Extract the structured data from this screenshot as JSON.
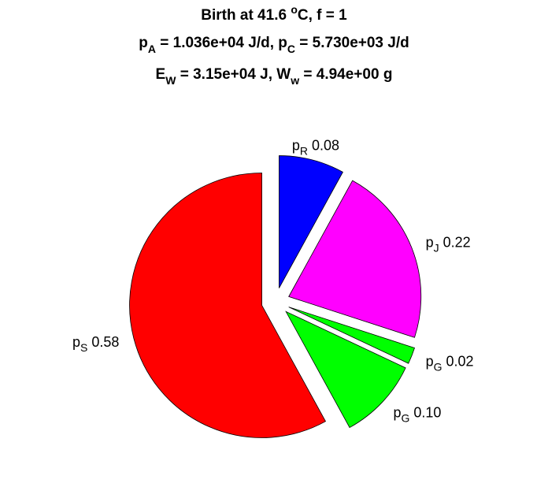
{
  "chart_data": {
    "type": "pie",
    "title": [
      [
        {
          "text": "Birth at 41.6 "
        },
        {
          "text": "o",
          "shift": "super"
        },
        {
          "text": "C, f = 1"
        }
      ],
      [
        {
          "text": "p"
        },
        {
          "text": "A",
          "shift": "sub"
        },
        {
          "text": " = 1.036e+04 J/d, p"
        },
        {
          "text": "C",
          "shift": "sub"
        },
        {
          "text": " = 5.730e+03 J/d"
        }
      ],
      [
        {
          "text": "E"
        },
        {
          "text": "W",
          "shift": "sub"
        },
        {
          "text": " = 3.15e+04 J, W"
        },
        {
          "text": "w",
          "shift": "sub"
        },
        {
          "text": " = 4.94e+00 g"
        }
      ]
    ],
    "categories": [
      {
        "symbol": "p",
        "subscript": "R"
      },
      {
        "symbol": "p",
        "subscript": "J"
      },
      {
        "symbol": "p",
        "subscript": "G"
      },
      {
        "symbol": "p",
        "subscript": "G"
      },
      {
        "symbol": "p",
        "subscript": "S"
      }
    ],
    "values": [
      0.08,
      0.22,
      0.02,
      0.1,
      0.58
    ],
    "value_labels": [
      "0.08",
      "0.22",
      "0.02",
      "0.10",
      "0.58"
    ],
    "colors": [
      "#0000ff",
      "#ff00ff",
      "#00ff00",
      "#00ff00",
      "#ff0000"
    ],
    "exploded": true
  }
}
